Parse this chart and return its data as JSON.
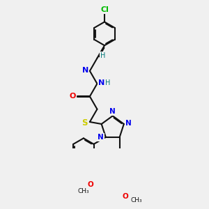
{
  "background_color": "#f0f0f0",
  "bond_color": "#111111",
  "atom_colors": {
    "Cl": "#00bb00",
    "N": "#0000ee",
    "O": "#ee0000",
    "S": "#cccc00",
    "H": "#007777",
    "C": "#111111"
  },
  "figsize": [
    3.0,
    3.0
  ],
  "dpi": 100,
  "lw": 1.5
}
